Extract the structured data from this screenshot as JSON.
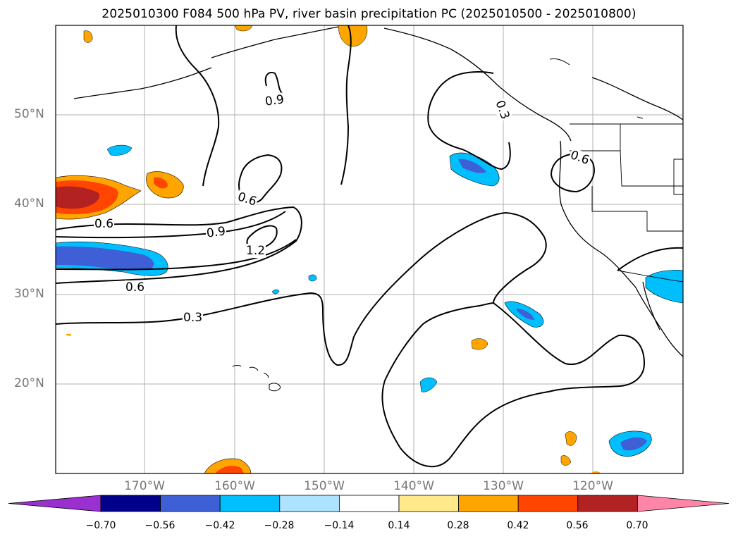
{
  "title": "2025010300 F084 500 hPa PV, river basin precipitation PC (2025010500 - 2025010800)",
  "map": {
    "lat_labels": [
      "50°N",
      "40°N",
      "30°N",
      "20°N"
    ],
    "lon_labels": [
      "170°W",
      "160°W",
      "150°W",
      "140°W",
      "130°W",
      "120°W"
    ],
    "contour_labels": [
      "0.9",
      "0.6",
      "0.9",
      "1.2",
      "0.6",
      "0.6",
      "0.3",
      "0.3",
      "0.6"
    ],
    "colors": {
      "pos_light": "#ffe98a",
      "pos_orange": "#ffa500",
      "pos_red": "#ff4500",
      "pos_darkred": "#b22222",
      "neg_light": "#aee3ff",
      "neg_cyan": "#00bfff",
      "neg_blue": "#3e5fd6",
      "neg_navy": "#00008b"
    }
  },
  "colorbar": {
    "ticks": [
      "−0.70",
      "−0.56",
      "−0.42",
      "−0.28",
      "−0.14",
      "0.14",
      "0.28",
      "0.42",
      "0.56",
      "0.70"
    ],
    "colors": [
      "#9b30d0",
      "#00008b",
      "#3e5fd6",
      "#00bfff",
      "#aee3ff",
      "#ffffff",
      "#ffe98a",
      "#ffa500",
      "#ff4500",
      "#b22222",
      "#ff85a8"
    ]
  }
}
